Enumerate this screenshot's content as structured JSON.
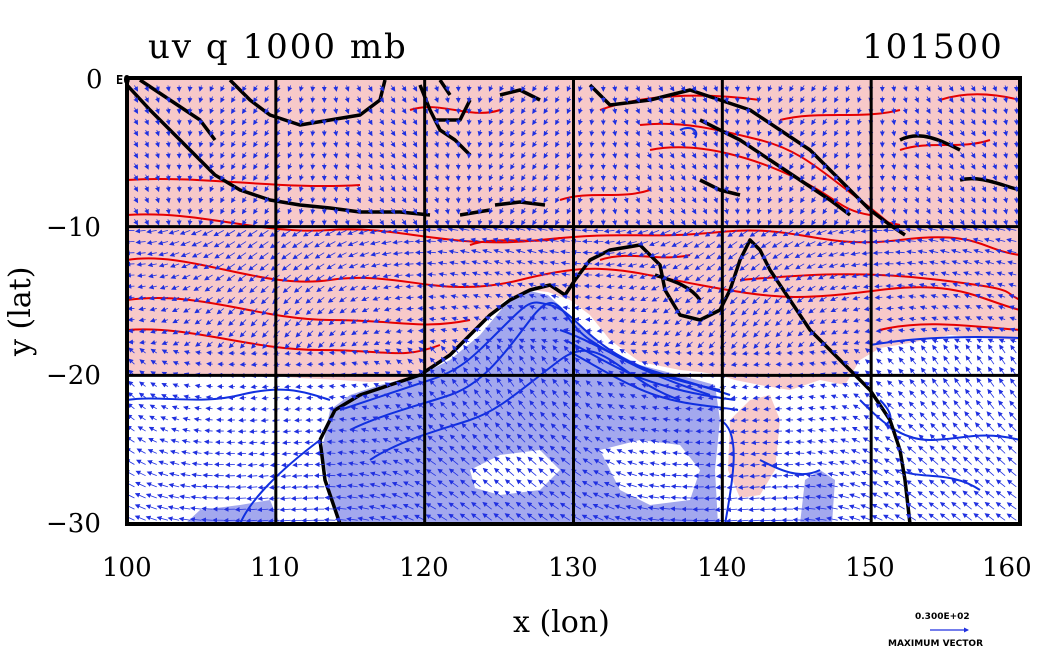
{
  "plot": {
    "title": "uv q 1000 mb",
    "time": "101500",
    "corner_label": "E0",
    "x_label": "x (lon)",
    "y_label": "y (lat)",
    "x_ticks": [
      "100",
      "110",
      "120",
      "130",
      "140",
      "150",
      "160"
    ],
    "y_ticks": [
      "0",
      "−10",
      "−20",
      "−30"
    ],
    "x_range": [
      100,
      160
    ],
    "y_range": [
      -30,
      0
    ],
    "grid_lon": [
      110,
      120,
      130,
      140,
      150
    ],
    "grid_lat": [
      -10,
      -20
    ]
  },
  "legend": {
    "value": "0.300E+02",
    "label": "MAXIMUM VECTOR"
  },
  "colors": {
    "moist_fill": "#f7c9c9",
    "dry_fill": "#a3a8ee",
    "moist_contour": "#e60000",
    "dry_contour": "#1030e0",
    "vector": "#2030e0",
    "coast": "#000000"
  }
}
